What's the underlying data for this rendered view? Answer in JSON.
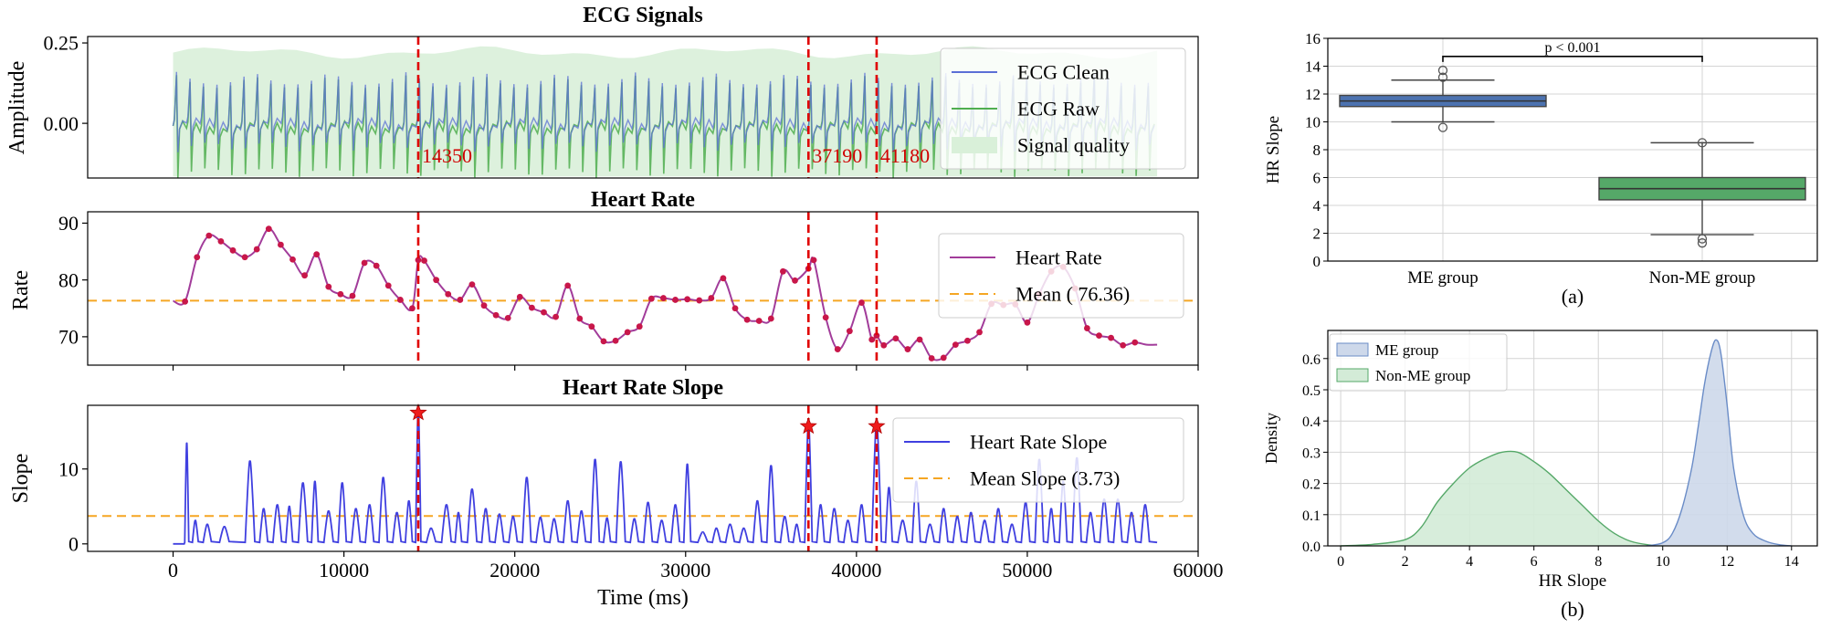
{
  "chart_data": [
    {
      "id": "ecg",
      "type": "line",
      "title": "ECG Signals",
      "ylabel": "Amplitude",
      "xlim": [
        -5000,
        60000
      ],
      "ylim": [
        -0.17,
        0.27
      ],
      "yticks": [
        0.25,
        0.0
      ],
      "ytick_labels": [
        "0.25",
        "0.00"
      ],
      "series": [
        {
          "name": "ECG Clean",
          "color": "#5b6fd6",
          "beat_interval_ms": 790,
          "baseline": -0.01,
          "peak": 0.16,
          "trough": -0.09
        },
        {
          "name": "ECG Raw",
          "color": "#4fae4f",
          "beat_interval_ms": 790,
          "baseline": -0.02,
          "peak": 0.15,
          "trough": -0.17
        }
      ],
      "quality_band": {
        "name": "Signal quality",
        "color": "#d9f0d9",
        "range": [
          -0.17,
          0.22
        ]
      },
      "markers": [
        {
          "x": 14350,
          "label": "14350"
        },
        {
          "x": 37190,
          "label": "37190"
        },
        {
          "x": 41180,
          "label": "41180"
        }
      ],
      "legend": "top-right"
    },
    {
      "id": "hr",
      "type": "line",
      "title": "Heart Rate",
      "ylabel": "Rate",
      "xlim": [
        -5000,
        60000
      ],
      "ylim": [
        65,
        92
      ],
      "yticks": [
        70,
        80,
        90
      ],
      "ytick_labels": [
        "70",
        "80",
        "90"
      ],
      "series": [
        {
          "name": "Heart Rate",
          "color": "#a23c9a",
          "point_color": "#c8174a",
          "x": [
            0,
            700,
            1400,
            2100,
            2800,
            3500,
            4200,
            4900,
            5600,
            6300,
            7000,
            7700,
            8400,
            9100,
            9800,
            10500,
            11200,
            11900,
            12600,
            13300,
            14000,
            14350,
            14700,
            15400,
            16100,
            16800,
            17500,
            18200,
            18900,
            19600,
            20300,
            21000,
            21700,
            22400,
            23100,
            23800,
            24500,
            25200,
            25900,
            26600,
            27300,
            28000,
            28700,
            29400,
            30100,
            30800,
            31500,
            32200,
            32900,
            33600,
            34300,
            35000,
            35700,
            36400,
            37190,
            37500,
            38200,
            38900,
            39600,
            40300,
            40900,
            41180,
            41600,
            42300,
            43000,
            43700,
            44400,
            45100,
            45800,
            46500,
            47200,
            47900,
            48600,
            49300,
            50000,
            50700,
            51400,
            52100,
            52800,
            53500,
            54200,
            54900,
            55600,
            56300,
            57000,
            57600
          ],
          "values": [
            76.3,
            76.2,
            84,
            87.8,
            86.8,
            85.2,
            84,
            85.4,
            89,
            86.2,
            83.6,
            80.8,
            84.5,
            78.8,
            77.5,
            77.2,
            83,
            82.5,
            79,
            76.5,
            75,
            83.5,
            83.4,
            80,
            77.5,
            76.5,
            79.2,
            75.5,
            73.8,
            73.3,
            77,
            75.1,
            74.3,
            73.5,
            79,
            73.2,
            71.8,
            69.2,
            69.3,
            70.8,
            71.8,
            76.7,
            76.8,
            76.5,
            76.6,
            76.4,
            76.8,
            80.3,
            75,
            73,
            72.8,
            73.2,
            81.5,
            79.9,
            82,
            83.5,
            73.4,
            67.8,
            71,
            76,
            69.5,
            70.2,
            68.5,
            69.7,
            67.8,
            69.5,
            66.2,
            66.3,
            68.6,
            69.3,
            70.8,
            75.8,
            75.6,
            75.7,
            72.5,
            77.5,
            81.5,
            82.3,
            78.5,
            71.5,
            70.2,
            69.8,
            68.5,
            69,
            68.6,
            68.6
          ]
        },
        {
          "name": "Mean ( 76.36)",
          "color": "#f5a623",
          "value": 76.36
        }
      ],
      "markers": [
        14350,
        37190,
        41180
      ],
      "legend": "top-right"
    },
    {
      "id": "slope",
      "type": "line",
      "title": "Heart Rate Slope",
      "ylabel": "Slope",
      "xlabel": "Time (ms)",
      "xlim": [
        -5000,
        60000
      ],
      "ylim": [
        -1,
        18.5
      ],
      "xticks": [
        0,
        10000,
        20000,
        30000,
        40000,
        50000,
        60000
      ],
      "xtick_labels": [
        "0",
        "10000",
        "20000",
        "30000",
        "40000",
        "50000",
        "60000"
      ],
      "yticks": [
        0,
        10
      ],
      "ytick_labels": [
        "0",
        "10"
      ],
      "series": [
        {
          "name": "Heart Rate Slope",
          "color": "#4040e0",
          "peaks_x": [
            800,
            1300,
            2000,
            3000,
            4500,
            5300,
            6100,
            6800,
            7600,
            8300,
            9100,
            9900,
            10700,
            11500,
            12300,
            13100,
            13800,
            14350,
            15100,
            16000,
            16700,
            17500,
            18300,
            19100,
            19900,
            20700,
            21500,
            22300,
            23100,
            23900,
            24700,
            25400,
            26200,
            27000,
            27800,
            28600,
            29400,
            30100,
            31000,
            31800,
            32600,
            33400,
            34200,
            35000,
            35800,
            36500,
            37190,
            37900,
            38700,
            39500,
            40300,
            41180,
            41900,
            42700,
            43500,
            44300,
            45100,
            45900,
            46700,
            47500,
            48300,
            49100,
            49900,
            50700,
            51400,
            52100,
            52900,
            53700,
            54500,
            55300,
            56100,
            56900
          ],
          "peaks_y": [
            12.9,
            3,
            2.5,
            2.2,
            10.6,
            4.5,
            5,
            4.8,
            7.8,
            8,
            4.2,
            7.8,
            4.5,
            5,
            8.5,
            4,
            5.5,
            17.5,
            2,
            5,
            4,
            7,
            4.5,
            3.8,
            3.5,
            8.5,
            3.4,
            3.2,
            5.5,
            4.2,
            10.8,
            3.3,
            10.5,
            3.2,
            5.3,
            3,
            5,
            10.2,
            1.5,
            2,
            2.5,
            2,
            5.5,
            10,
            3.5,
            2.5,
            15.7,
            5,
            4.5,
            3,
            5,
            15.7,
            7.2,
            3,
            8,
            2.5,
            4.5,
            3.5,
            4,
            3,
            4.5,
            2.5,
            5.3,
            10.8,
            4.5,
            8,
            11,
            4,
            5.7,
            5.7,
            4,
            5
          ]
        },
        {
          "name": "Mean Slope (3.73)",
          "color": "#f5a623",
          "value": 3.73
        }
      ],
      "stars": [
        {
          "x": 14350,
          "y": 17.5
        },
        {
          "x": 37190,
          "y": 15.7
        },
        {
          "x": 41180,
          "y": 15.7
        }
      ],
      "markers": [
        14350,
        37190,
        41180
      ],
      "legend": "top-right"
    },
    {
      "id": "box",
      "type": "box",
      "caption": "(a)",
      "ylabel": "HR Slope",
      "categories": [
        "ME group",
        "Non-ME group"
      ],
      "ylim": [
        0,
        16
      ],
      "yticks": [
        0,
        2,
        4,
        6,
        8,
        10,
        12,
        14,
        16
      ],
      "ytick_labels": [
        "0",
        "2",
        "4",
        "6",
        "8",
        "10",
        "12",
        "14",
        "16"
      ],
      "boxes": [
        {
          "name": "ME group",
          "color": "#4c72b0",
          "q1": 11.1,
          "median": 11.5,
          "q3": 11.9,
          "whisker_low": 10.0,
          "whisker_high": 13.0,
          "outliers": [
            13.2,
            13.7,
            9.6
          ]
        },
        {
          "name": "Non-ME group",
          "color": "#55a868",
          "q1": 4.4,
          "median": 5.2,
          "q3": 6.0,
          "whisker_low": 1.9,
          "whisker_high": 8.5,
          "outliers": [
            8.5,
            1.6,
            1.3
          ]
        }
      ],
      "annotation": "p < 0.001",
      "annotation_level": 14.7
    },
    {
      "id": "density",
      "type": "area",
      "caption": "(b)",
      "xlabel": "HR Slope",
      "ylabel": "Density",
      "xlim": [
        -0.4,
        14.8
      ],
      "ylim": [
        0,
        0.69
      ],
      "xticks": [
        0,
        2,
        4,
        6,
        8,
        10,
        12,
        14
      ],
      "xtick_labels": [
        "0",
        "2",
        "4",
        "6",
        "8",
        "10",
        "12",
        "14"
      ],
      "yticks": [
        0.0,
        0.1,
        0.2,
        0.3,
        0.4,
        0.5,
        0.6
      ],
      "ytick_labels": [
        "0.0",
        "0.1",
        "0.2",
        "0.3",
        "0.4",
        "0.5",
        "0.6"
      ],
      "series": [
        {
          "name": "ME group",
          "color": "#6a8cc7",
          "fill": "#cdd8ea",
          "x": [
            9.5,
            10.0,
            10.3,
            10.6,
            10.9,
            11.1,
            11.3,
            11.5,
            11.65,
            11.8,
            12.0,
            12.2,
            12.5,
            12.8,
            13.2,
            13.6,
            14.0
          ],
          "values": [
            0.0,
            0.01,
            0.04,
            0.12,
            0.25,
            0.38,
            0.52,
            0.62,
            0.66,
            0.62,
            0.45,
            0.25,
            0.1,
            0.04,
            0.015,
            0.004,
            0.0
          ]
        },
        {
          "name": "Non-ME group",
          "color": "#55a868",
          "fill": "#d3ebd7",
          "x": [
            0.0,
            1.0,
            2.0,
            2.5,
            3.0,
            3.5,
            4.0,
            4.5,
            5.0,
            5.5,
            6.0,
            6.5,
            7.0,
            7.5,
            8.0,
            8.5,
            9.0,
            9.5,
            10.0
          ],
          "values": [
            0.0,
            0.005,
            0.02,
            0.06,
            0.14,
            0.2,
            0.25,
            0.28,
            0.3,
            0.3,
            0.27,
            0.23,
            0.18,
            0.13,
            0.08,
            0.04,
            0.015,
            0.004,
            0.0
          ]
        }
      ],
      "legend": "top-left"
    }
  ]
}
